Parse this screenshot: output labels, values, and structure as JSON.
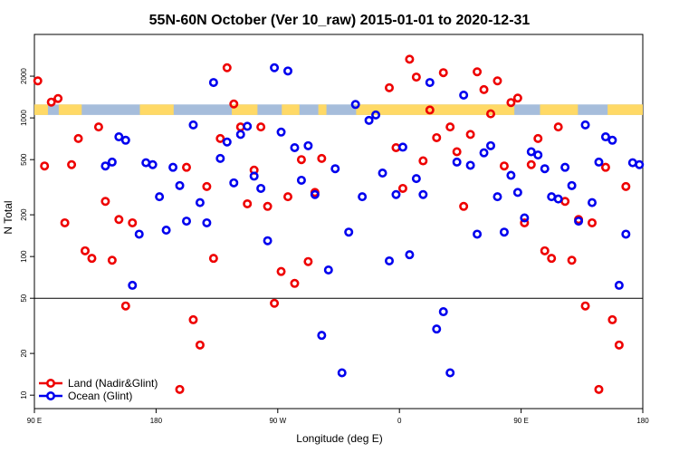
{
  "chart_data": {
    "type": "scatter",
    "title": "55N-60N October (Ver 10_raw)   2015-01-01 to 2020-12-31",
    "xlabel": "Longitude (deg E)",
    "ylabel": "N Total",
    "y_scale": "log",
    "xlim": [
      0,
      450
    ],
    "ylim": [
      8,
      4000
    ],
    "x_ticks": [
      {
        "pos": 0,
        "label": "90 E"
      },
      {
        "pos": 90,
        "label": "180"
      },
      {
        "pos": 180,
        "label": "90 W"
      },
      {
        "pos": 270,
        "label": "0"
      },
      {
        "pos": 360,
        "label": "90 E"
      },
      {
        "pos": 450,
        "label": "180"
      }
    ],
    "y_ticks": [
      {
        "value": 10,
        "label": "10"
      },
      {
        "value": 20,
        "label": "20"
      },
      {
        "value": 50,
        "label": "50"
      },
      {
        "value": 100,
        "label": "100"
      },
      {
        "value": 200,
        "label": "200"
      },
      {
        "value": 500,
        "label": "500"
      },
      {
        "value": 1000,
        "label": "1000"
      },
      {
        "value": 2000,
        "label": "2000"
      }
    ],
    "reference_line": 50,
    "land_band": {
      "low": 1050,
      "high": 1250,
      "land_color": "#ffd966",
      "ocean_color": "#a6bddb"
    },
    "land_segments": [
      [
        0,
        10
      ],
      [
        18,
        35
      ],
      [
        78,
        103
      ],
      [
        146,
        165
      ],
      [
        183,
        196
      ],
      [
        210,
        216
      ],
      [
        238,
        355
      ],
      [
        374,
        402
      ],
      [
        424,
        450
      ]
    ],
    "series": [
      {
        "name": "Land (Nadir&Glint)",
        "color": "#ee0000",
        "x": [
          2.5,
          7.5,
          12.5,
          17.5,
          22.5,
          27.5,
          32.5,
          37.5,
          42.5,
          47.5,
          52.5,
          57.5,
          62.5,
          67.5,
          72.5,
          107.5,
          112.5,
          117.5,
          122.5,
          127.5,
          132.5,
          137.5,
          142.5,
          147.5,
          152.5,
          157.5,
          162.5,
          167.5,
          172.5,
          177.5,
          182.5,
          187.5,
          192.5,
          197.5,
          202.5,
          207.5,
          212.5,
          262.5,
          267.5,
          272.5,
          277.5,
          282.5,
          287.5,
          292.5,
          297.5,
          302.5,
          307.5,
          312.5,
          317.5,
          322.5,
          327.5,
          332.5,
          337.5,
          342.5,
          347.5,
          352.5,
          357.5,
          362.5,
          367.5,
          372.5,
          377.5,
          382.5,
          387.5,
          392.5,
          397.5,
          402.5,
          407.5,
          412.5,
          417.5,
          422.5,
          427.5,
          432.5,
          437.5
        ],
        "y": [
          1850,
          450,
          1300,
          1380,
          175,
          460,
          710,
          110,
          97,
          860,
          250,
          94,
          185,
          44,
          175,
          11,
          440,
          35,
          23,
          320,
          97,
          710,
          2300,
          1260,
          860,
          240,
          420,
          860,
          230,
          46,
          78,
          270,
          64,
          500,
          92,
          290,
          510,
          1650,
          610,
          310,
          2650,
          1970,
          490,
          1140,
          720,
          2120,
          860,
          570,
          230,
          760,
          2150,
          1600,
          1070,
          1850,
          450,
          1290,
          1390,
          175,
          460,
          710,
          110,
          97,
          860,
          250,
          94,
          185,
          44,
          175,
          11,
          440,
          35,
          23,
          320
        ]
      },
      {
        "name": "Ocean (Glint)",
        "color": "#0000ee",
        "x": [
          52.5,
          57.5,
          62.5,
          67.5,
          72.5,
          77.5,
          82.5,
          87.5,
          92.5,
          97.5,
          102.5,
          107.5,
          112.5,
          117.5,
          122.5,
          127.5,
          132.5,
          137.5,
          142.5,
          147.5,
          152.5,
          157.5,
          162.5,
          167.5,
          172.5,
          177.5,
          182.5,
          187.5,
          192.5,
          197.5,
          202.5,
          207.5,
          212.5,
          217.5,
          222.5,
          227.5,
          232.5,
          237.5,
          242.5,
          247.5,
          252.5,
          257.5,
          262.5,
          267.5,
          272.5,
          277.5,
          282.5,
          287.5,
          292.5,
          297.5,
          302.5,
          307.5,
          312.5,
          317.5,
          322.5,
          327.5,
          332.5,
          337.5,
          342.5,
          347.5,
          352.5,
          357.5,
          362.5,
          367.5,
          372.5,
          377.5,
          382.5,
          387.5,
          392.5,
          397.5,
          402.5,
          407.5,
          412.5,
          417.5,
          422.5,
          427.5,
          432.5,
          437.5,
          442.5,
          447.5
        ],
        "y": [
          450,
          480,
          730,
          690,
          62,
          145,
          475,
          460,
          270,
          155,
          440,
          325,
          180,
          890,
          245,
          175,
          1800,
          510,
          670,
          340,
          760,
          870,
          380,
          310,
          130,
          2300,
          790,
          2180,
          610,
          355,
          630,
          280,
          27,
          80,
          430,
          14.5,
          150,
          1250,
          270,
          960,
          1050,
          400,
          93,
          280,
          615,
          103,
          365,
          280,
          1800,
          30,
          40,
          14.5,
          480,
          1460,
          455,
          145,
          560,
          630,
          270,
          150,
          385,
          290,
          190,
          570,
          540,
          430,
          270,
          260,
          440,
          325,
          180,
          890,
          245,
          480,
          730,
          690,
          62,
          145,
          475,
          460
        ]
      }
    ],
    "legend": [
      {
        "label": "Land (Nadir&Glint)",
        "color": "#ee0000"
      },
      {
        "label": "Ocean (Glint)",
        "color": "#0000ee"
      }
    ],
    "legend_placement": "bottom-left"
  }
}
